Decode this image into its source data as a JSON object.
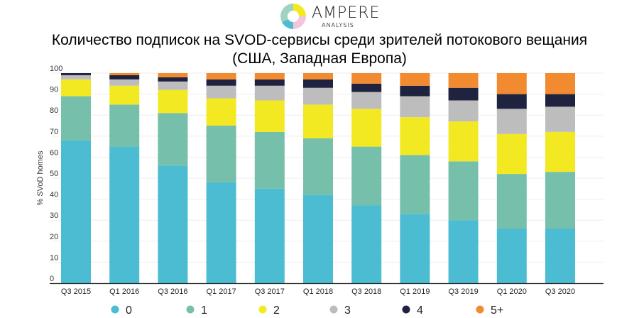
{
  "logo": {
    "word": "AMPERE",
    "sub": "ANALYSIS"
  },
  "title_line1": "Количество подписок на SVOD-сервисы среди зрителей потокового вещания",
  "title_line2": "(США, Западная Европа)",
  "chart_data": {
    "type": "bar",
    "stacked": true,
    "title": "Количество подписок на SVOD-сервисы среди зрителей потокового вещания (США, Западная Европа)",
    "xlabel": "",
    "ylabel": "% SVoD homes",
    "ylim": [
      0,
      100
    ],
    "yticks": [
      0,
      10,
      20,
      30,
      40,
      50,
      60,
      70,
      80,
      90,
      100
    ],
    "grid": true,
    "legend_position": "bottom",
    "categories": [
      "Q3 2015",
      "Q1 2016",
      "Q3 2016",
      "Q1 2017",
      "Q3 2017",
      "Q1 2018",
      "Q3 2018",
      "Q1 2019",
      "Q3 2019",
      "Q1 2020",
      "Q3 2020"
    ],
    "series": [
      {
        "name": "0",
        "color": "#4bbcd1",
        "values": [
          68,
          65,
          56,
          48,
          45,
          42,
          37,
          33,
          30,
          26,
          26
        ]
      },
      {
        "name": "1",
        "color": "#76bfaa",
        "values": [
          21,
          20,
          25,
          27,
          27,
          27,
          28,
          28,
          28,
          26,
          27
        ]
      },
      {
        "name": "2",
        "color": "#f2e923",
        "values": [
          8,
          9,
          11,
          13,
          15,
          16,
          18,
          18,
          19,
          19,
          19
        ]
      },
      {
        "name": "3",
        "color": "#bdbdbd",
        "values": [
          2,
          3,
          4,
          6,
          7,
          8,
          8,
          10,
          10,
          12,
          12
        ]
      },
      {
        "name": "4",
        "color": "#1f2340",
        "values": [
          1,
          2,
          2,
          3,
          3,
          4,
          4,
          5,
          6,
          7,
          6
        ]
      },
      {
        "name": "5+",
        "color": "#f28a30",
        "values": [
          0,
          1,
          2,
          3,
          3,
          3,
          5,
          6,
          7,
          10,
          10
        ]
      }
    ]
  }
}
